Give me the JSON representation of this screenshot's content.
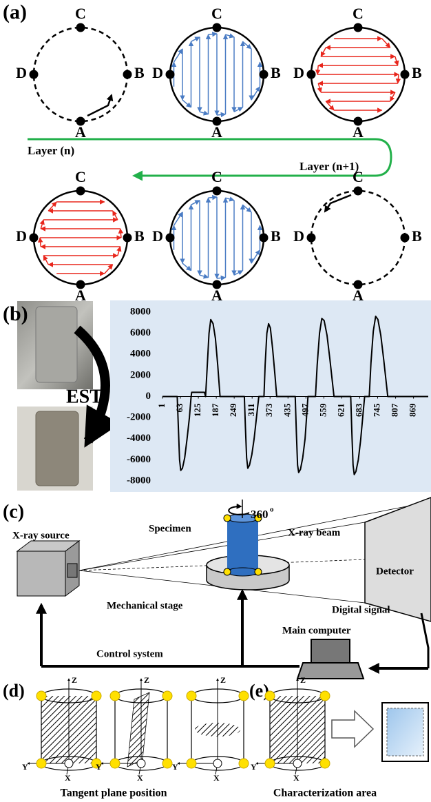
{
  "panel_a": {
    "label": "(a)",
    "circles": [
      {
        "top": "C",
        "right": "B",
        "bottom": "A",
        "left": "D"
      },
      {
        "top": "C",
        "right": "B",
        "bottom": "A",
        "left": "D"
      },
      {
        "top": "C",
        "right": "B",
        "bottom": "A",
        "left": "D"
      },
      {
        "top": "C",
        "right": "B",
        "bottom": "A",
        "left": "D"
      },
      {
        "top": "C",
        "right": "B",
        "bottom": "A",
        "left": "D"
      },
      {
        "top": "C",
        "right": "B",
        "bottom": "A",
        "left": "D"
      }
    ],
    "layer_n": "Layer (n)",
    "layer_n1": "Layer (n+1)"
  },
  "panel_b": {
    "label": "(b)",
    "est": "EST"
  },
  "chart_data": {
    "type": "line",
    "color": "#000000",
    "background": "#dde8f4",
    "x": [
      1,
      52,
      56,
      60,
      64,
      70,
      78,
      86,
      94,
      100,
      102,
      146,
      150,
      156,
      162,
      168,
      176,
      184,
      192,
      200,
      284,
      288,
      292,
      296,
      302,
      310,
      318,
      326,
      334,
      352,
      356,
      362,
      368,
      374,
      382,
      390,
      396,
      460,
      464,
      468,
      472,
      478,
      486,
      494,
      504,
      530,
      536,
      544,
      552,
      560,
      570,
      580,
      594,
      652,
      656,
      660,
      664,
      670,
      678,
      686,
      700,
      716,
      722,
      730,
      738,
      746,
      756,
      766,
      780,
      920
    ],
    "values": [
      0,
      0,
      -3000,
      -6000,
      -7000,
      -6800,
      -5800,
      -4000,
      -2000,
      0,
      400,
      400,
      0,
      3000,
      6000,
      7300,
      6900,
      5500,
      3000,
      0,
      0,
      -3000,
      -5800,
      -6800,
      -6500,
      -5500,
      -4000,
      -2000,
      0,
      0,
      3000,
      6000,
      6900,
      6500,
      4500,
      2000,
      0,
      0,
      -3500,
      -6500,
      -7200,
      -6900,
      -5800,
      -4000,
      0,
      0,
      3000,
      6000,
      7400,
      7200,
      5800,
      3500,
      0,
      0,
      -3500,
      -6500,
      -7400,
      -7100,
      -6000,
      -4200,
      0,
      0,
      3200,
      6200,
      7600,
      7300,
      5800,
      3500,
      0,
      0
    ],
    "xlim": [
      1,
      920
    ],
    "xticks": [
      1,
      63,
      125,
      187,
      249,
      311,
      373,
      435,
      497,
      559,
      621,
      683,
      745,
      807,
      869
    ],
    "ylim": [
      -8000,
      8000
    ],
    "yticks": [
      8000,
      6000,
      4000,
      2000,
      0,
      -2000,
      -4000,
      -6000,
      -8000
    ],
    "grid": false
  },
  "panel_c": {
    "label": "(c)",
    "xray_source": "X-ray source",
    "specimen": "Specimen",
    "rotation": "360",
    "rotation_sup": "o",
    "xray_beam": "X-ray beam",
    "detector": "Detector",
    "stage": "Mechanical stage",
    "signal": "Digital signal",
    "computer": "Main computer",
    "control": "Control system"
  },
  "panel_d": {
    "label": "(d)",
    "cylinders": [
      {
        "z": "Z",
        "y": "Y",
        "x": "X"
      },
      {
        "z": "Z",
        "y": "Y",
        "x": "X"
      },
      {
        "z": "Z",
        "y": "Y",
        "x": "X"
      }
    ],
    "caption": "Tangent plane position"
  },
  "panel_e": {
    "label": "(e)",
    "z": "Z",
    "y": "Y",
    "x": "X",
    "caption": "Characterization area"
  }
}
